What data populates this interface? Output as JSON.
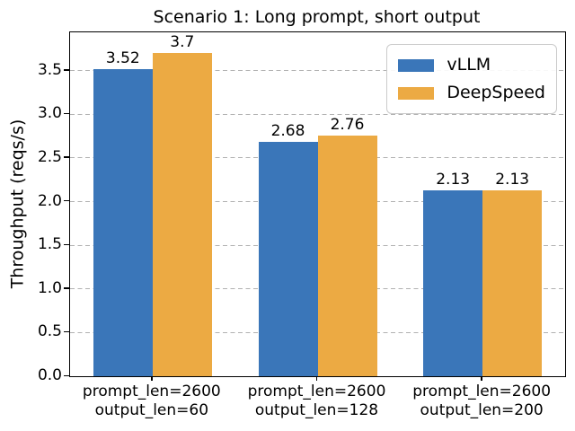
{
  "chart_data": {
    "type": "bar",
    "title": "Scenario 1: Long prompt, short output",
    "ylabel": "Throughput (reqs/s)",
    "xlabel": "",
    "categories": [
      "prompt_len=2600\noutput_len=60",
      "prompt_len=2600\noutput_len=128",
      "prompt_len=2600\noutput_len=200"
    ],
    "series": [
      {
        "name": "vLLM",
        "color": "#3a76b9",
        "values": [
          3.52,
          2.68,
          2.13
        ],
        "value_labels": [
          "3.52",
          "2.68",
          "2.13"
        ]
      },
      {
        "name": "DeepSpeed",
        "color": "#ecaa43",
        "values": [
          3.7,
          2.76,
          2.13
        ],
        "value_labels": [
          "3.7",
          "2.76",
          "2.13"
        ]
      }
    ],
    "yticks": [
      "0.0",
      "0.5",
      "1.0",
      "1.5",
      "2.0",
      "2.5",
      "3.0",
      "3.5"
    ],
    "ylim": [
      0,
      3.94
    ],
    "grid": {
      "axis": "y",
      "style": "dashed",
      "color": "#b2b2b2"
    },
    "legend": {
      "position": "upper-right",
      "entries": [
        "vLLM",
        "DeepSpeed"
      ]
    }
  }
}
